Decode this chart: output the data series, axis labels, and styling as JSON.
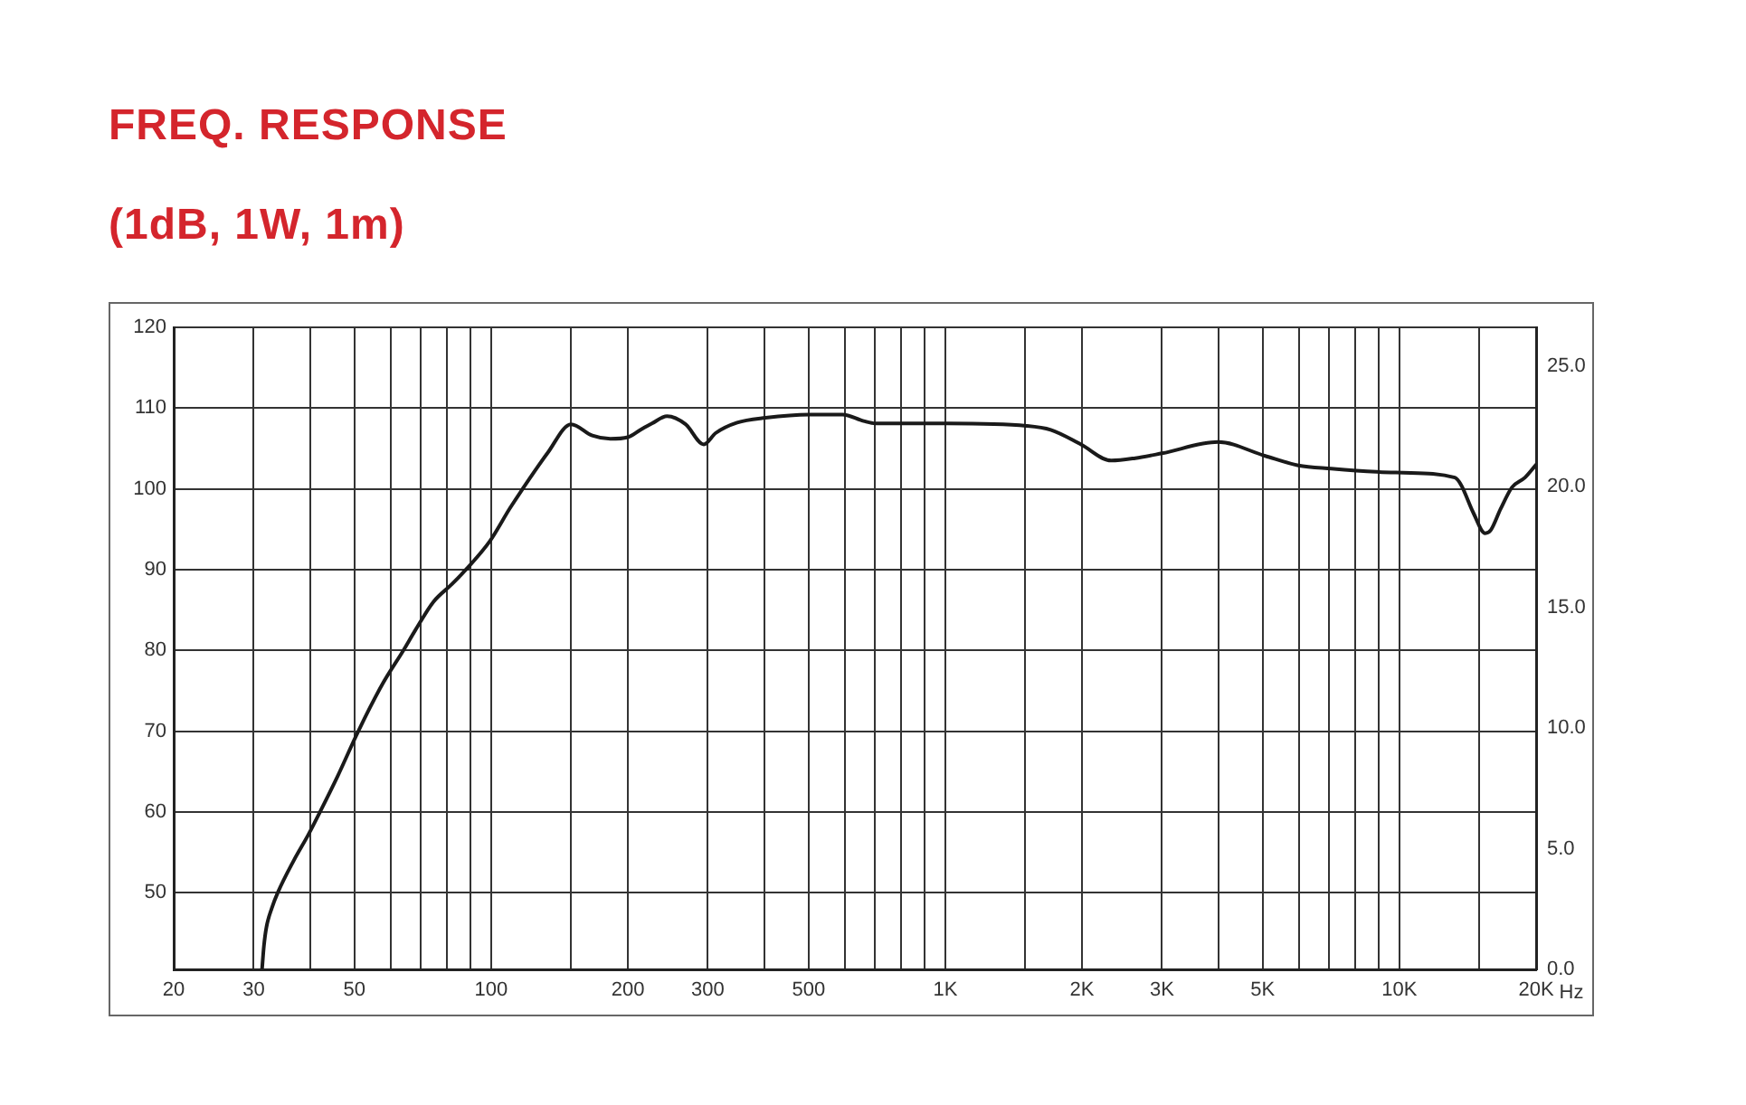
{
  "chart_data": {
    "type": "line",
    "title": "FREQ. RESPONSE",
    "subtitle": "(1dB, 1W, 1m)",
    "xlabel": "Hz",
    "log": "x",
    "grid": true,
    "marker": "none",
    "line_style": "solid",
    "x": [
      31.3,
      31.6,
      32,
      32.9,
      33.9,
      36.7,
      39.6,
      42,
      45.9,
      51,
      57.6,
      64.1,
      68.1,
      74.6,
      81.6,
      88,
      99.3,
      110,
      117,
      133,
      150,
      167,
      183,
      200,
      213,
      226,
      244,
      268,
      294,
      312,
      348,
      402,
      501,
      594,
      661,
      702,
      1014,
      1510,
      1707,
      1990,
      2320,
      2620,
      3000,
      3990,
      5050,
      5990,
      7080,
      8910,
      10200,
      13250,
      13670,
      14530,
      15450,
      15900,
      16700,
      17700,
      18900,
      20000
    ],
    "series": [
      {
        "color": "#1a1a1a",
        "values": [
          40.5,
          43.4,
          45.7,
          48.1,
          50,
          53.9,
          57.2,
          60,
          64.4,
          70,
          75.8,
          80,
          82.5,
          86,
          88.1,
          90,
          93.5,
          97.6,
          99.9,
          104.4,
          108,
          106.6,
          106.2,
          106.4,
          107.3,
          108.1,
          109,
          108,
          105.5,
          106.9,
          108.2,
          108.8,
          109.2,
          109.2,
          108.4,
          108.1,
          108.1,
          107.8,
          107.3,
          105.5,
          103.5,
          103.8,
          104.4,
          105.8,
          104.1,
          102.9,
          102.5,
          102.1,
          102,
          101.4,
          100.5,
          97.1,
          94.5,
          94.9,
          97.5,
          100.2,
          101.4,
          103
        ]
      }
    ],
    "xlim": [
      20,
      20000
    ],
    "xticks": [
      20,
      30,
      {
        "value": 40,
        "label": null
      },
      50,
      {
        "value": 60,
        "label": null
      },
      {
        "value": 70,
        "label": null
      },
      {
        "value": 80,
        "label": null
      },
      {
        "value": 90,
        "label": null
      },
      100,
      {
        "value": 150,
        "label": null
      },
      200,
      300,
      {
        "value": 400,
        "label": null
      },
      500,
      {
        "value": 600,
        "label": null
      },
      {
        "value": 700,
        "label": null
      },
      {
        "value": 800,
        "label": null
      },
      {
        "value": 900,
        "label": null
      },
      {
        "value": 1000,
        "label": "1K"
      },
      {
        "value": 1500,
        "label": null
      },
      {
        "value": 2000,
        "label": "2K"
      },
      {
        "value": 3000,
        "label": "3K"
      },
      {
        "value": 4000,
        "label": null
      },
      {
        "value": 5000,
        "label": "5K"
      },
      {
        "value": 6000,
        "label": null
      },
      {
        "value": 7000,
        "label": null
      },
      {
        "value": 8000,
        "label": null
      },
      {
        "value": 9000,
        "label": null
      },
      {
        "value": 10000,
        "label": "10K"
      },
      {
        "value": 15000,
        "label": null
      },
      {
        "value": 20000,
        "label": "20K"
      }
    ],
    "ylim": [
      40.5,
      120
    ],
    "yticks": [
      50,
      60,
      70,
      80,
      90,
      100,
      110,
      120
    ],
    "y2lim": [
      0,
      26.6
    ],
    "y2ticks": [
      {
        "value": 0,
        "label": "0.0"
      },
      {
        "value": 5,
        "label": "5.0"
      },
      {
        "value": 10,
        "label": "10.0"
      },
      {
        "value": 15,
        "label": "15.0"
      },
      {
        "value": 20,
        "label": "20.0"
      },
      {
        "value": 25,
        "label": "25.0"
      }
    ]
  }
}
